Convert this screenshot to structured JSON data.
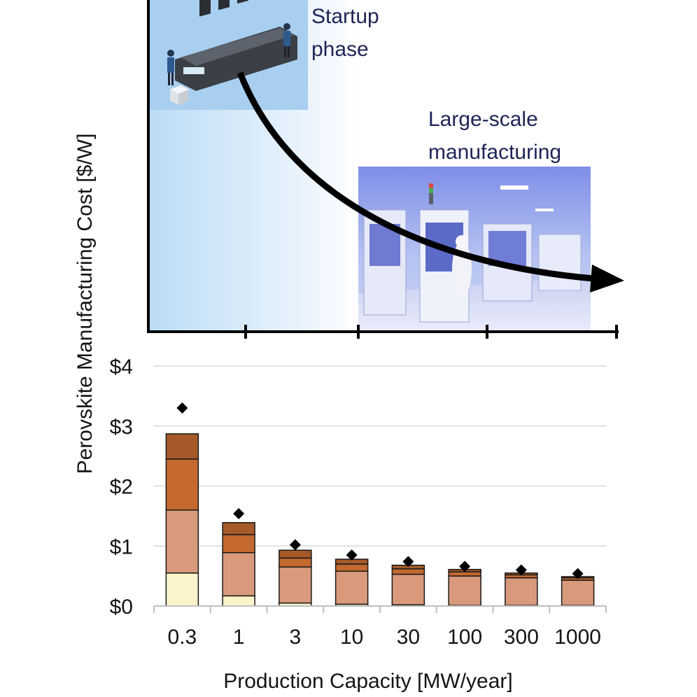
{
  "figure": {
    "ylabel": "Perovskite Manufacturing Cost [$/W]",
    "xlabel": "Production Capacity [MW/year]",
    "startup_label": [
      "Startup",
      "phase"
    ],
    "largescale_label": [
      "Large-scale",
      "manufacturing"
    ],
    "startup_image": "printing-press-illustration",
    "factory_image": "cleanroom-factory-photo",
    "arrow": "cost-decline-arrow"
  },
  "chart_data": {
    "type": "bar",
    "stacked": true,
    "categories": [
      "0.3",
      "1",
      "3",
      "10",
      "30",
      "100",
      "300",
      "1000"
    ],
    "yticks": [
      "$0",
      "$1",
      "$2",
      "$3",
      "$4"
    ],
    "ylim": [
      0,
      4
    ],
    "grid": true,
    "series": [
      {
        "name": "segment-1",
        "color": "#fbf3c9",
        "values": [
          0.55,
          0.17,
          0.05,
          0.03,
          0.02,
          0.01,
          0.01,
          0.01
        ]
      },
      {
        "name": "segment-2",
        "color": "#d9997b",
        "values": [
          1.05,
          0.72,
          0.6,
          0.55,
          0.51,
          0.49,
          0.46,
          0.42
        ]
      },
      {
        "name": "segment-3",
        "color": "#c4692f",
        "values": [
          0.85,
          0.3,
          0.15,
          0.12,
          0.09,
          0.07,
          0.05,
          0.04
        ]
      },
      {
        "name": "segment-4",
        "color": "#a65a2a",
        "values": [
          0.42,
          0.2,
          0.13,
          0.08,
          0.06,
          0.04,
          0.03,
          0.02
        ]
      }
    ],
    "markers": {
      "name": "diamond",
      "values": [
        3.3,
        1.54,
        1.02,
        0.85,
        0.74,
        0.66,
        0.6,
        0.54
      ]
    }
  }
}
